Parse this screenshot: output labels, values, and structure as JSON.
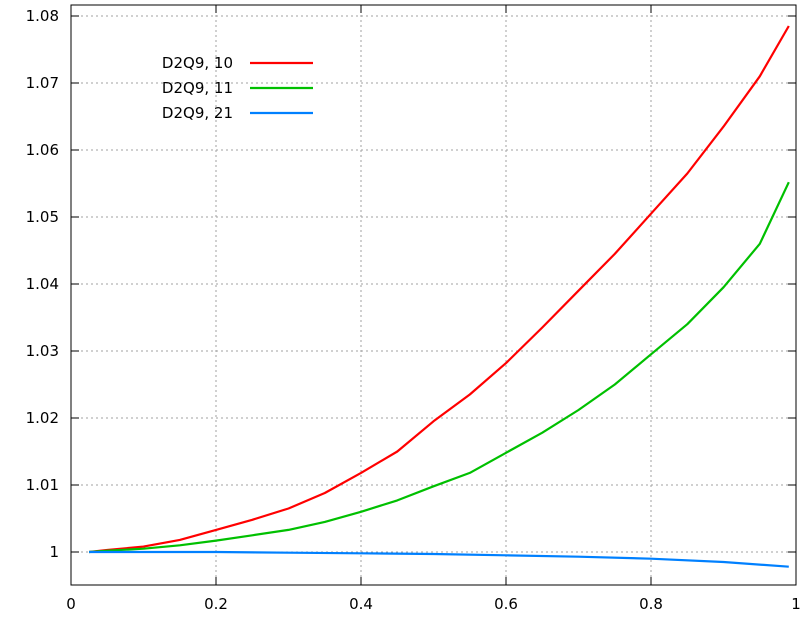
{
  "chart_data": {
    "type": "line",
    "title": "",
    "xlabel": "",
    "ylabel": "",
    "xlim": [
      0,
      1
    ],
    "ylim": [
      0.995,
      1.08
    ],
    "x_ticks": [
      0,
      0.2,
      0.4,
      0.6,
      0.8,
      1
    ],
    "x_tick_labels": [
      "0",
      "0.2",
      "0.4",
      "0.6",
      "0.8",
      "1"
    ],
    "y_ticks": [
      1,
      1.01,
      1.02,
      1.03,
      1.04,
      1.05,
      1.06,
      1.07,
      1.08
    ],
    "y_tick_labels": [
      "1",
      "1.01",
      "1.02",
      "1.03",
      "1.04",
      "1.05",
      "1.06",
      "1.07",
      "1.08"
    ],
    "grid": true,
    "legend_position": "top-left",
    "series": [
      {
        "name": "D2Q9, 10",
        "color": "#ff0000",
        "x": [
          0.025,
          0.05,
          0.1,
          0.15,
          0.2,
          0.25,
          0.3,
          0.35,
          0.4,
          0.45,
          0.5,
          0.55,
          0.6,
          0.65,
          0.7,
          0.75,
          0.8,
          0.85,
          0.9,
          0.95,
          0.99
        ],
        "y": [
          1.0,
          1.0003,
          1.0008,
          1.0018,
          1.0033,
          1.0048,
          1.0065,
          1.0088,
          1.0118,
          1.015,
          1.0195,
          1.0235,
          1.0282,
          1.0335,
          1.039,
          1.0445,
          1.0505,
          1.0565,
          1.0635,
          1.071,
          1.0785
        ]
      },
      {
        "name": "D2Q9, 11",
        "color": "#00c000",
        "x": [
          0.025,
          0.05,
          0.1,
          0.15,
          0.2,
          0.25,
          0.3,
          0.35,
          0.4,
          0.45,
          0.5,
          0.55,
          0.6,
          0.65,
          0.7,
          0.75,
          0.8,
          0.85,
          0.9,
          0.95,
          0.99
        ],
        "y": [
          1.0,
          1.0002,
          1.0005,
          1.001,
          1.0017,
          1.0025,
          1.0033,
          1.0045,
          1.006,
          1.0077,
          1.0098,
          1.0118,
          1.0148,
          1.0178,
          1.0212,
          1.025,
          1.0295,
          1.034,
          1.0395,
          1.046,
          1.0552
        ]
      },
      {
        "name": "D2Q9, 21",
        "color": "#0080ff",
        "x": [
          0.025,
          0.1,
          0.2,
          0.3,
          0.4,
          0.5,
          0.6,
          0.7,
          0.8,
          0.9,
          0.99
        ],
        "y": [
          1.0,
          1.0,
          1.0,
          0.9999,
          0.9998,
          0.9997,
          0.9995,
          0.9993,
          0.999,
          0.9985,
          0.9978
        ]
      }
    ]
  }
}
